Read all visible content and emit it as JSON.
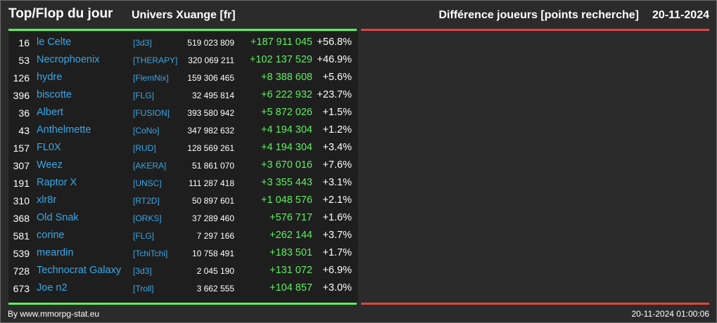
{
  "header": {
    "title": "Top/Flop du jour",
    "universe": "Univers Xuange [fr]",
    "subtitle": "Différence joueurs [points recherche]",
    "date": "20-11-2024"
  },
  "top_table": {
    "rows": [
      {
        "rank": "16",
        "name": "le Celte",
        "alliance": "[3d3]",
        "points": "519 023 809",
        "diff": "+187 911 045",
        "pct": "+56.8%"
      },
      {
        "rank": "53",
        "name": "Necrophoenix",
        "alliance": "[THERAPY]",
        "points": "320 069 211",
        "diff": "+102 137 529",
        "pct": "+46.9%"
      },
      {
        "rank": "126",
        "name": "hydre",
        "alliance": "[FlemNix]",
        "points": "159 306 465",
        "diff": "+8 388 608",
        "pct": "+5.6%"
      },
      {
        "rank": "396",
        "name": "biscotte",
        "alliance": "[FLG]",
        "points": "32 495 814",
        "diff": "+6 222 932",
        "pct": "+23.7%"
      },
      {
        "rank": "36",
        "name": "Albert",
        "alliance": "[FUSION]",
        "points": "393 580 942",
        "diff": "+5 872 026",
        "pct": "+1.5%"
      },
      {
        "rank": "43",
        "name": "Anthelmette",
        "alliance": "[CoNo]",
        "points": "347 982 632",
        "diff": "+4 194 304",
        "pct": "+1.2%"
      },
      {
        "rank": "157",
        "name": "FL0X",
        "alliance": "[RUD]",
        "points": "128 569 261",
        "diff": "+4 194 304",
        "pct": "+3.4%"
      },
      {
        "rank": "307",
        "name": "Weez",
        "alliance": "[AKERA]",
        "points": "51 861 070",
        "diff": "+3 670 016",
        "pct": "+7.6%"
      },
      {
        "rank": "191",
        "name": "Raptor X",
        "alliance": "[UNSC]",
        "points": "111 287 418",
        "diff": "+3 355 443",
        "pct": "+3.1%"
      },
      {
        "rank": "310",
        "name": "xlr8r",
        "alliance": "[RT2D]",
        "points": "50 897 601",
        "diff": "+1 048 576",
        "pct": "+2.1%"
      },
      {
        "rank": "368",
        "name": "Old Snak",
        "alliance": "[ORKS]",
        "points": "37 289 460",
        "diff": "+576 717",
        "pct": "+1.6%"
      },
      {
        "rank": "581",
        "name": "corine",
        "alliance": "[FLG]",
        "points": "7 297 166",
        "diff": "+262 144",
        "pct": "+3.7%"
      },
      {
        "rank": "539",
        "name": "meardin",
        "alliance": "[TchiTchi]",
        "points": "10 758 491",
        "diff": "+183 501",
        "pct": "+1.7%"
      },
      {
        "rank": "728",
        "name": "Technocrat Galaxy",
        "alliance": "[3d3]",
        "points": "2 045 190",
        "diff": "+131 072",
        "pct": "+6.9%"
      },
      {
        "rank": "673",
        "name": "Joe n2",
        "alliance": "[Troll]",
        "points": "3 662 555",
        "diff": "+104 857",
        "pct": "+3.0%"
      }
    ]
  },
  "flop_table": {
    "rows": []
  },
  "footer": {
    "credit": "By www.mmorpg-stat.eu",
    "timestamp": "20-11-2024 01:00:06"
  },
  "colors": {
    "gain": "#5ef05e",
    "loss": "#e0453e",
    "link": "#3aa7e6",
    "panel": "#1e1e1e",
    "background": "#2b2b2b"
  }
}
